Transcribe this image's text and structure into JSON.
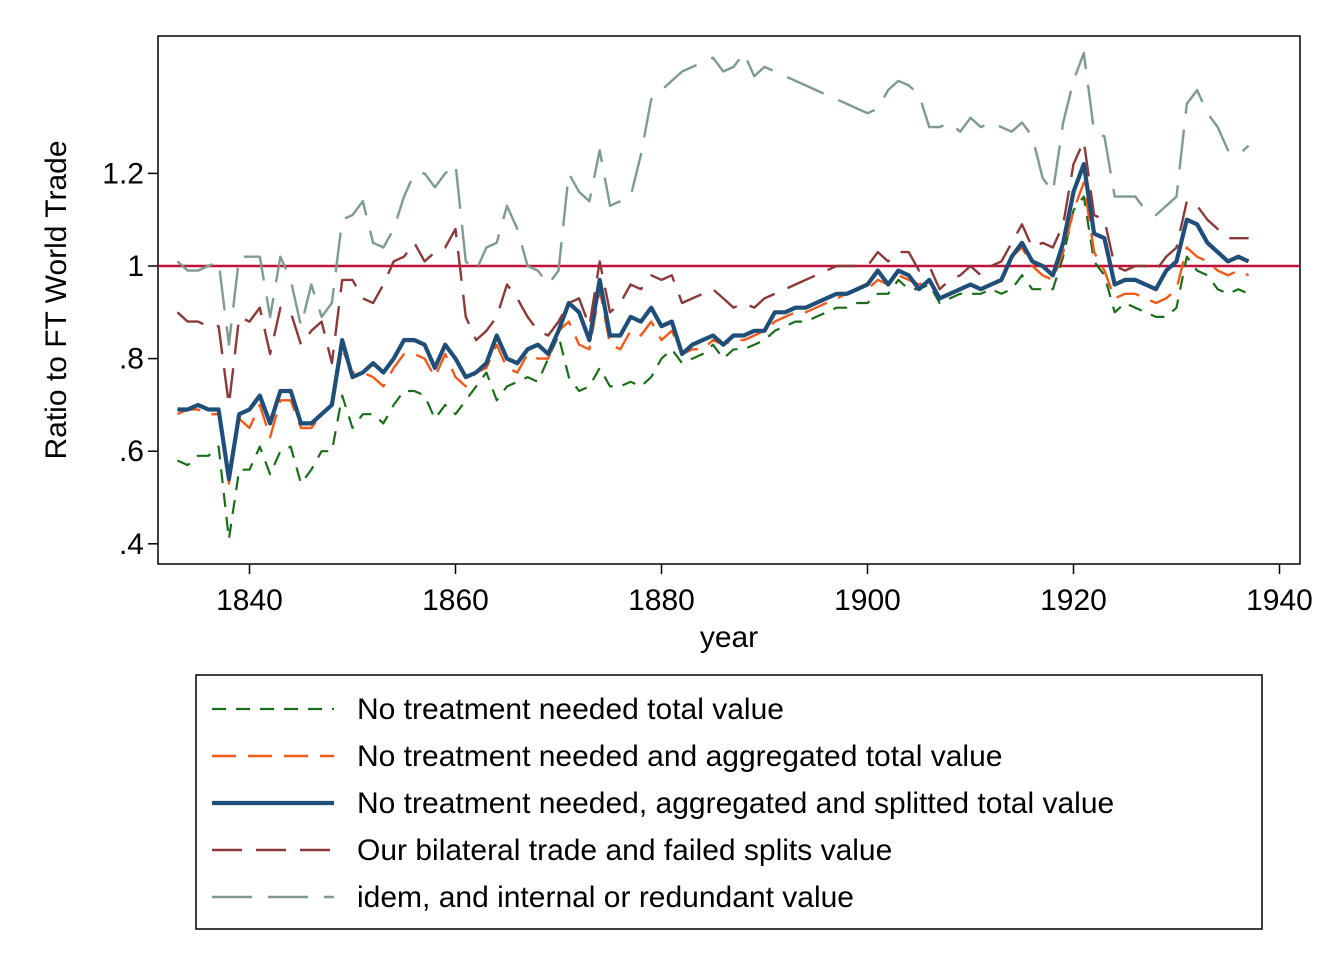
{
  "chart_data": {
    "type": "line",
    "xlabel": "year",
    "ylabel": "Ratio to FT World Trade",
    "xlim": [
      1832,
      1942
    ],
    "ylim": [
      0.36,
      1.66
    ],
    "xticks": [
      1840,
      1860,
      1880,
      1900,
      1920,
      1940
    ],
    "yticks": [
      {
        "value": 0.4,
        "label": ".4"
      },
      {
        "value": 0.6,
        "label": ".6"
      },
      {
        "value": 0.8,
        "label": ".8"
      },
      {
        "value": 1.0,
        "label": "1"
      },
      {
        "value": 1.2,
        "label": "1.2"
      }
    ],
    "reference_line": {
      "y": 1.0,
      "color": "#c0113a"
    },
    "legend_position": "bottom",
    "series": [
      {
        "name": "No treatment needed total value",
        "color": "#1a6e1a",
        "dash": "14,10",
        "width": 2.2,
        "x": [
          1833,
          1834,
          1835,
          1836,
          1837,
          1838,
          1839,
          1840,
          1841,
          1842,
          1843,
          1844,
          1845,
          1846,
          1847,
          1848,
          1849,
          1850,
          1851,
          1852,
          1853,
          1854,
          1855,
          1856,
          1857,
          1858,
          1859,
          1860,
          1861,
          1862,
          1863,
          1864,
          1865,
          1866,
          1867,
          1868,
          1869,
          1870,
          1871,
          1872,
          1873,
          1874,
          1875,
          1876,
          1877,
          1878,
          1879,
          1880,
          1881,
          1882,
          1883,
          1884,
          1885,
          1886,
          1887,
          1888,
          1889,
          1890,
          1891,
          1892,
          1893,
          1894,
          1895,
          1896,
          1897,
          1898,
          1899,
          1900,
          1901,
          1902,
          1903,
          1904,
          1905,
          1906,
          1907,
          1908,
          1909,
          1910,
          1911,
          1912,
          1913,
          1914,
          1915,
          1916,
          1917,
          1918,
          1919,
          1920,
          1921,
          1922,
          1923,
          1924,
          1925,
          1926,
          1927,
          1928,
          1929,
          1930,
          1931,
          1932,
          1933,
          1934,
          1935,
          1936,
          1937
        ],
        "y": [
          0.58,
          0.57,
          0.59,
          0.59,
          0.61,
          0.41,
          0.56,
          0.56,
          0.61,
          0.55,
          0.6,
          0.61,
          0.53,
          0.56,
          0.6,
          0.6,
          0.72,
          0.65,
          0.68,
          0.68,
          0.66,
          0.7,
          0.73,
          0.73,
          0.72,
          0.67,
          0.7,
          0.68,
          0.71,
          0.74,
          0.77,
          0.71,
          0.74,
          0.75,
          0.76,
          0.75,
          0.8,
          0.85,
          0.76,
          0.73,
          0.74,
          0.78,
          0.74,
          0.74,
          0.75,
          0.74,
          0.76,
          0.8,
          0.82,
          0.79,
          0.8,
          0.81,
          0.83,
          0.8,
          0.82,
          0.82,
          0.83,
          0.84,
          0.86,
          0.87,
          0.88,
          0.88,
          0.89,
          0.9,
          0.91,
          0.91,
          0.92,
          0.92,
          0.94,
          0.94,
          0.97,
          0.95,
          0.95,
          0.96,
          0.92,
          0.93,
          0.94,
          0.94,
          0.94,
          0.95,
          0.94,
          0.95,
          0.98,
          0.95,
          0.95,
          0.95,
          1.02,
          1.12,
          1.15,
          1.01,
          0.98,
          0.9,
          0.92,
          0.91,
          0.9,
          0.89,
          0.89,
          0.91,
          1.02,
          0.99,
          0.98,
          0.95,
          0.94,
          0.95,
          0.94
        ]
      },
      {
        "name": "No treatment needed and aggregated total value",
        "color": "#f05a1a",
        "dash": "24,12",
        "width": 2.4,
        "x": [
          1833,
          1834,
          1835,
          1836,
          1837,
          1838,
          1839,
          1840,
          1841,
          1842,
          1843,
          1844,
          1845,
          1846,
          1847,
          1848,
          1849,
          1850,
          1851,
          1852,
          1853,
          1854,
          1855,
          1856,
          1857,
          1858,
          1859,
          1860,
          1861,
          1862,
          1863,
          1864,
          1865,
          1866,
          1867,
          1868,
          1869,
          1870,
          1871,
          1872,
          1873,
          1874,
          1875,
          1876,
          1877,
          1878,
          1879,
          1880,
          1881,
          1882,
          1883,
          1884,
          1885,
          1886,
          1887,
          1888,
          1889,
          1890,
          1891,
          1892,
          1893,
          1894,
          1895,
          1896,
          1897,
          1898,
          1899,
          1900,
          1901,
          1902,
          1903,
          1904,
          1905,
          1906,
          1907,
          1908,
          1909,
          1910,
          1911,
          1912,
          1913,
          1914,
          1915,
          1916,
          1917,
          1918,
          1919,
          1920,
          1921,
          1922,
          1923,
          1924,
          1925,
          1926,
          1927,
          1928,
          1929,
          1930,
          1931,
          1932,
          1933,
          1934,
          1935,
          1936,
          1937
        ],
        "y": [
          0.68,
          0.69,
          0.69,
          0.68,
          0.68,
          0.53,
          0.67,
          0.65,
          0.7,
          0.63,
          0.71,
          0.71,
          0.65,
          0.65,
          0.68,
          0.7,
          0.82,
          0.77,
          0.77,
          0.76,
          0.74,
          0.78,
          0.81,
          0.81,
          0.8,
          0.76,
          0.81,
          0.76,
          0.74,
          0.77,
          0.78,
          0.83,
          0.78,
          0.77,
          0.81,
          0.8,
          0.8,
          0.86,
          0.88,
          0.83,
          0.82,
          0.95,
          0.83,
          0.82,
          0.86,
          0.85,
          0.88,
          0.84,
          0.86,
          0.81,
          0.82,
          0.82,
          0.84,
          0.83,
          0.84,
          0.84,
          0.85,
          0.86,
          0.88,
          0.89,
          0.9,
          0.9,
          0.91,
          0.92,
          0.93,
          0.94,
          0.95,
          0.95,
          0.97,
          0.96,
          0.98,
          0.97,
          0.96,
          0.97,
          0.93,
          0.94,
          0.95,
          0.96,
          0.95,
          0.96,
          0.97,
          1.02,
          1.04,
          1.0,
          0.98,
          0.97,
          1.03,
          1.12,
          1.18,
          1.03,
          0.99,
          0.93,
          0.94,
          0.94,
          0.93,
          0.92,
          0.93,
          0.95,
          1.04,
          1.02,
          1.01,
          0.99,
          0.98,
          0.99,
          0.98
        ]
      },
      {
        "name": "No treatment needed, aggregated and splitted total value",
        "color": "#1f4e79",
        "dash": "",
        "width": 4.2,
        "x": [
          1833,
          1834,
          1835,
          1836,
          1837,
          1838,
          1839,
          1840,
          1841,
          1842,
          1843,
          1844,
          1845,
          1846,
          1847,
          1848,
          1849,
          1850,
          1851,
          1852,
          1853,
          1854,
          1855,
          1856,
          1857,
          1858,
          1859,
          1860,
          1861,
          1862,
          1863,
          1864,
          1865,
          1866,
          1867,
          1868,
          1869,
          1870,
          1871,
          1872,
          1873,
          1874,
          1875,
          1876,
          1877,
          1878,
          1879,
          1880,
          1881,
          1882,
          1883,
          1884,
          1885,
          1886,
          1887,
          1888,
          1889,
          1890,
          1891,
          1892,
          1893,
          1894,
          1895,
          1896,
          1897,
          1898,
          1899,
          1900,
          1901,
          1902,
          1903,
          1904,
          1905,
          1906,
          1907,
          1908,
          1909,
          1910,
          1911,
          1912,
          1913,
          1914,
          1915,
          1916,
          1917,
          1918,
          1919,
          1920,
          1921,
          1922,
          1923,
          1924,
          1925,
          1926,
          1927,
          1928,
          1929,
          1930,
          1931,
          1932,
          1933,
          1934,
          1935,
          1936,
          1937
        ],
        "y": [
          0.69,
          0.69,
          0.7,
          0.69,
          0.69,
          0.54,
          0.68,
          0.69,
          0.72,
          0.66,
          0.73,
          0.73,
          0.66,
          0.66,
          0.68,
          0.7,
          0.84,
          0.76,
          0.77,
          0.79,
          0.77,
          0.8,
          0.84,
          0.84,
          0.83,
          0.78,
          0.83,
          0.8,
          0.76,
          0.77,
          0.79,
          0.85,
          0.8,
          0.79,
          0.82,
          0.83,
          0.81,
          0.86,
          0.92,
          0.9,
          0.84,
          0.97,
          0.85,
          0.85,
          0.89,
          0.88,
          0.91,
          0.87,
          0.88,
          0.81,
          0.83,
          0.84,
          0.85,
          0.83,
          0.85,
          0.85,
          0.86,
          0.86,
          0.9,
          0.9,
          0.91,
          0.91,
          0.92,
          0.93,
          0.94,
          0.94,
          0.95,
          0.96,
          0.99,
          0.96,
          0.99,
          0.98,
          0.95,
          0.97,
          0.93,
          0.94,
          0.95,
          0.96,
          0.95,
          0.96,
          0.97,
          1.02,
          1.05,
          1.01,
          1.0,
          0.98,
          1.05,
          1.16,
          1.22,
          1.07,
          1.06,
          0.96,
          0.97,
          0.97,
          0.96,
          0.95,
          0.99,
          1.01,
          1.1,
          1.09,
          1.05,
          1.03,
          1.01,
          1.02,
          1.01
        ]
      },
      {
        "name": "Our bilateral trade and failed splits value",
        "color": "#8b3a3a",
        "dash": "30,14",
        "width": 2.4,
        "x": [
          1833,
          1834,
          1835,
          1836,
          1837,
          1838,
          1839,
          1840,
          1841,
          1842,
          1843,
          1844,
          1845,
          1846,
          1847,
          1848,
          1849,
          1850,
          1851,
          1852,
          1853,
          1854,
          1855,
          1856,
          1857,
          1858,
          1859,
          1860,
          1861,
          1862,
          1863,
          1864,
          1865,
          1866,
          1867,
          1868,
          1869,
          1870,
          1871,
          1872,
          1873,
          1874,
          1875,
          1876,
          1877,
          1878,
          1879,
          1880,
          1881,
          1882,
          1883,
          1884,
          1885,
          1886,
          1887,
          1888,
          1889,
          1890,
          1891,
          1892,
          1893,
          1894,
          1895,
          1896,
          1897,
          1898,
          1899,
          1900,
          1901,
          1902,
          1903,
          1904,
          1905,
          1906,
          1907,
          1908,
          1909,
          1910,
          1911,
          1912,
          1913,
          1914,
          1915,
          1916,
          1917,
          1918,
          1919,
          1920,
          1921,
          1922,
          1923,
          1924,
          1925,
          1926,
          1927,
          1928,
          1929,
          1930,
          1931,
          1932,
          1933,
          1934,
          1935,
          1936,
          1937
        ],
        "y": [
          0.9,
          0.88,
          0.88,
          0.87,
          0.87,
          0.7,
          0.89,
          0.88,
          0.91,
          0.81,
          0.91,
          0.9,
          0.83,
          0.86,
          0.88,
          0.79,
          0.97,
          0.97,
          0.93,
          0.92,
          0.96,
          1.01,
          1.02,
          1.05,
          1.01,
          1.03,
          1.04,
          1.08,
          0.89,
          0.84,
          0.86,
          0.89,
          0.96,
          0.93,
          0.89,
          0.86,
          0.85,
          0.88,
          0.92,
          0.93,
          0.87,
          1.01,
          0.9,
          0.92,
          0.96,
          0.95,
          0.98,
          0.97,
          0.98,
          0.92,
          0.93,
          0.94,
          0.95,
          0.93,
          0.91,
          0.92,
          0.91,
          0.93,
          0.94,
          0.95,
          0.96,
          0.97,
          0.98,
          0.99,
          1.0,
          1.0,
          1.0,
          1.0,
          1.03,
          1.01,
          1.03,
          1.03,
          0.99,
          1.0,
          0.95,
          0.97,
          0.98,
          1.0,
          0.98,
          1.0,
          1.01,
          1.05,
          1.09,
          1.04,
          1.05,
          1.04,
          1.09,
          1.22,
          1.27,
          1.11,
          1.1,
          1.0,
          0.99,
          1.0,
          1.0,
          0.99,
          1.02,
          1.04,
          1.14,
          1.13,
          1.1,
          1.08,
          1.06,
          1.06,
          1.06
        ]
      },
      {
        "name": "idem, and internal or redundant value",
        "color": "#7f9a90",
        "dash": "40,16",
        "width": 2.4,
        "x": [
          1833,
          1834,
          1835,
          1836,
          1837,
          1838,
          1839,
          1840,
          1841,
          1842,
          1843,
          1844,
          1845,
          1846,
          1847,
          1848,
          1849,
          1850,
          1851,
          1852,
          1853,
          1854,
          1855,
          1856,
          1857,
          1858,
          1859,
          1860,
          1861,
          1862,
          1863,
          1864,
          1865,
          1866,
          1867,
          1868,
          1869,
          1870,
          1871,
          1872,
          1873,
          1874,
          1875,
          1876,
          1877,
          1878,
          1879,
          1880,
          1881,
          1882,
          1883,
          1884,
          1885,
          1886,
          1887,
          1888,
          1889,
          1890,
          1891,
          1892,
          1893,
          1894,
          1895,
          1896,
          1897,
          1898,
          1899,
          1900,
          1901,
          1902,
          1903,
          1904,
          1905,
          1906,
          1907,
          1908,
          1909,
          1910,
          1911,
          1912,
          1913,
          1914,
          1915,
          1916,
          1917,
          1918,
          1919,
          1920,
          1921,
          1922,
          1923,
          1924,
          1925,
          1926,
          1927,
          1928,
          1929,
          1930,
          1931,
          1932,
          1933,
          1934,
          1935,
          1936,
          1937
        ],
        "y": [
          1.01,
          0.99,
          0.99,
          1.0,
          1.01,
          0.83,
          1.02,
          1.02,
          1.02,
          0.89,
          1.02,
          0.97,
          0.87,
          0.96,
          0.89,
          0.92,
          1.1,
          1.11,
          1.14,
          1.05,
          1.04,
          1.08,
          1.15,
          1.2,
          1.2,
          1.17,
          1.2,
          1.22,
          1.01,
          0.99,
          1.04,
          1.05,
          1.13,
          1.08,
          1.0,
          0.99,
          0.96,
          0.99,
          1.2,
          1.16,
          1.14,
          1.25,
          1.13,
          1.14,
          1.15,
          1.24,
          1.36,
          1.38,
          1.4,
          1.42,
          1.43,
          1.44,
          1.45,
          1.42,
          1.43,
          1.46,
          1.41,
          1.43,
          1.42,
          1.41,
          1.4,
          1.39,
          1.38,
          1.37,
          1.36,
          1.35,
          1.34,
          1.33,
          1.34,
          1.38,
          1.4,
          1.39,
          1.37,
          1.3,
          1.3,
          1.31,
          1.29,
          1.32,
          1.3,
          1.31,
          1.3,
          1.29,
          1.31,
          1.28,
          1.19,
          1.16,
          1.31,
          1.4,
          1.46,
          1.29,
          1.28,
          1.15,
          1.15,
          1.15,
          1.12,
          1.11,
          1.13,
          1.15,
          1.35,
          1.38,
          1.33,
          1.3,
          1.25,
          1.24,
          1.26
        ]
      }
    ]
  }
}
